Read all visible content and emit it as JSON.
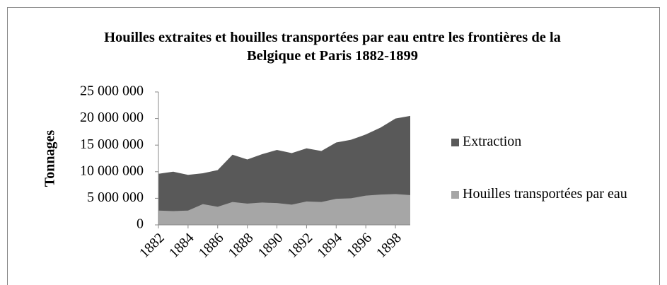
{
  "chart_data": {
    "type": "area",
    "title": "Houilles extraites et houilles transportées par eau entre les frontières de la Belgique et Paris 1882-1899",
    "ylabel": "Tonnages",
    "x": [
      1882,
      1883,
      1884,
      1885,
      1886,
      1887,
      1888,
      1889,
      1890,
      1891,
      1892,
      1893,
      1894,
      1895,
      1896,
      1897,
      1898,
      1899
    ],
    "xlim": [
      1882,
      1899
    ],
    "xticks": [
      1882,
      1884,
      1886,
      1888,
      1890,
      1892,
      1894,
      1896,
      1898
    ],
    "ylim": [
      0,
      25000000
    ],
    "yticks": [
      0,
      {
        "value": 5000000,
        "label": "5 000 000"
      },
      {
        "value": 10000000,
        "label": "10 000 000"
      },
      {
        "value": 15000000,
        "label": "15 000 000"
      },
      {
        "value": 20000000,
        "label": "20 000 000"
      },
      {
        "value": 25000000,
        "label": "25 000 000"
      }
    ],
    "series": [
      {
        "name": "Extraction",
        "color": "#595959",
        "values": [
          9600000,
          10000000,
          9400000,
          9700000,
          10300000,
          13200000,
          12300000,
          13300000,
          14100000,
          13500000,
          14400000,
          13900000,
          15500000,
          16000000,
          17000000,
          18300000,
          20000000,
          20500000
        ]
      },
      {
        "name": "Houilles transportées par eau",
        "color": "#a6a6a6",
        "values": [
          2700000,
          2600000,
          2700000,
          3900000,
          3400000,
          4300000,
          4000000,
          4200000,
          4100000,
          3800000,
          4400000,
          4300000,
          4900000,
          5000000,
          5500000,
          5700000,
          5800000,
          5600000
        ]
      }
    ],
    "legend": "right"
  }
}
